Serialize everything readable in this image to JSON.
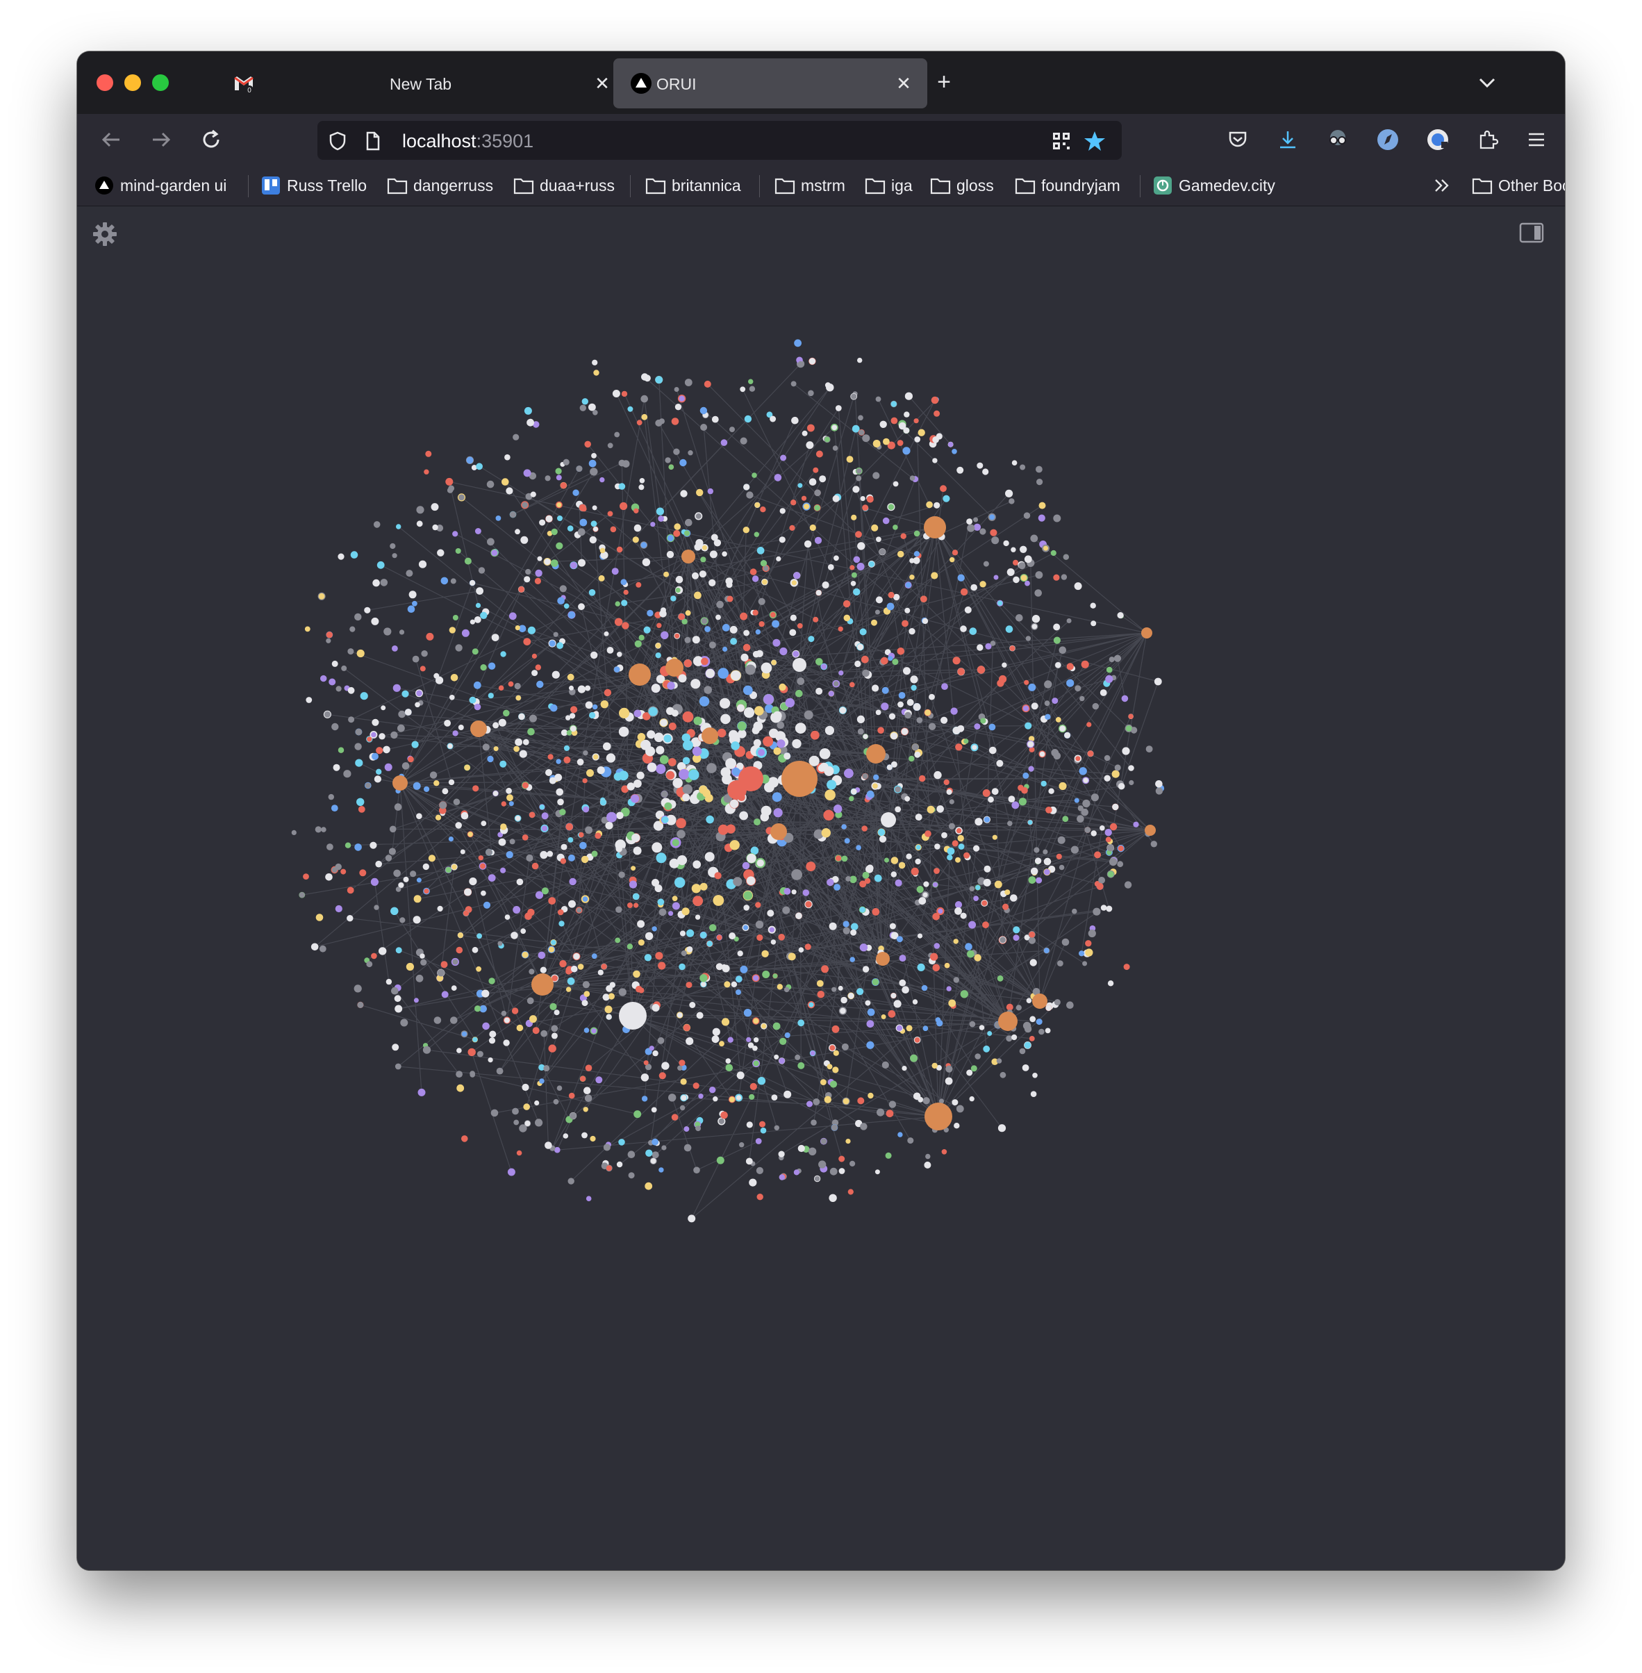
{
  "tabs": [
    {
      "label": "New Tab",
      "favicon": "gmail-icon",
      "active": false
    },
    {
      "label": "ORUI",
      "favicon": "triangle-logo-icon",
      "active": true
    }
  ],
  "navigation": {
    "url_host": "localhost",
    "url_port": ":35901"
  },
  "bookmarks": [
    {
      "label": "mind-garden ui",
      "icon": "triangle-logo-icon"
    },
    {
      "label": "Russ Trello",
      "icon": "trello-icon"
    },
    {
      "label": "dangerruss",
      "icon": "folder-icon"
    },
    {
      "label": "duaa+russ",
      "icon": "folder-icon"
    },
    {
      "label": "britannica",
      "icon": "folder-icon"
    },
    {
      "label": "mstrm",
      "icon": "folder-icon"
    },
    {
      "label": "iga",
      "icon": "folder-icon"
    },
    {
      "label": "gloss",
      "icon": "folder-icon"
    },
    {
      "label": "foundryjam",
      "icon": "folder-icon"
    },
    {
      "label": "Gamedev.city",
      "icon": "gamedev-icon"
    }
  ],
  "other_bookmarks": "Other Bookmarks",
  "colors": {
    "window_bg": "#2e2f37",
    "node_orange": "#d98a52",
    "node_red": "#e8685a",
    "node_white": "#e6e6ea",
    "node_yellow": "#f2d37a",
    "node_cyan": "#6fd3ef",
    "node_blue": "#6aa3f0",
    "node_green": "#7cc47a",
    "node_purple": "#a98be8",
    "node_grey": "#8a8b94",
    "edge": "#5a5b66"
  }
}
